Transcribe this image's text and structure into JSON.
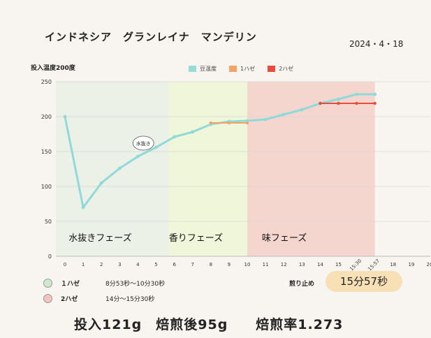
{
  "header": {
    "title": "インドネシア　グランレイナ　マンデリン",
    "date": "2024・4・18"
  },
  "colors": {
    "bean_temp": "#98dcd8",
    "bean_temp_line": "#8fdad8",
    "first_crack": "#f1a466",
    "second_crack": "#e74c3c",
    "phase_drying": "#ecf1e8",
    "phase_aroma": "#f0f6d9",
    "phase_flavor": "#f5d6cf",
    "first_crack_dot": "#cdeacc",
    "second_crack_dot": "#f2c3bf",
    "finish_pill": "#f8e0b6"
  },
  "chart_data": {
    "type": "line",
    "ylabel": "投入温度200度",
    "ylim": [
      0,
      250
    ],
    "yticks": [
      "0",
      "50",
      "100",
      "150",
      "200",
      "250"
    ],
    "xlim": [
      0,
      20
    ],
    "xticks": [
      {
        "x": 0,
        "label": "0"
      },
      {
        "x": 1,
        "label": "1"
      },
      {
        "x": 2,
        "label": "2"
      },
      {
        "x": 3,
        "label": "3"
      },
      {
        "x": 4,
        "label": "4"
      },
      {
        "x": 5,
        "label": "5"
      },
      {
        "x": 6,
        "label": "6"
      },
      {
        "x": 7,
        "label": "7"
      },
      {
        "x": 8,
        "label": "8"
      },
      {
        "x": 9,
        "label": "9"
      },
      {
        "x": 10,
        "label": "10"
      },
      {
        "x": 11,
        "label": "11"
      },
      {
        "x": 12,
        "label": "12"
      },
      {
        "x": 13,
        "label": "13"
      },
      {
        "x": 14,
        "label": "14"
      },
      {
        "x": 15,
        "label": "15"
      },
      {
        "x": 16,
        "label": "15:30"
      },
      {
        "x": 17,
        "label": "15:57"
      },
      {
        "x": 18,
        "label": "18"
      },
      {
        "x": 19,
        "label": "19"
      },
      {
        "x": 20,
        "label": "20"
      }
    ],
    "grid": true,
    "legend_position": "top",
    "series": [
      {
        "name": "豆温度",
        "color_key": "bean_temp_line",
        "swatch_key": "bean_temp",
        "x": [
          0,
          1,
          2,
          3,
          4,
          5,
          6,
          7,
          8,
          9,
          10,
          11,
          12,
          13,
          14,
          15,
          16,
          17
        ],
        "values": [
          200,
          70,
          105,
          126,
          143,
          156,
          171,
          178,
          189,
          193,
          194,
          196,
          203,
          210,
          219,
          225,
          232,
          232
        ]
      },
      {
        "name": "1ハゼ",
        "color_key": "first_crack",
        "swatch_key": "first_crack",
        "x": [
          8,
          9,
          10
        ],
        "values": [
          191,
          191,
          191
        ]
      },
      {
        "name": "2ハゼ",
        "color_key": "second_crack",
        "swatch_key": "second_crack",
        "x": [
          14,
          15,
          16,
          17
        ],
        "values": [
          219,
          219,
          219,
          219
        ]
      }
    ],
    "phases": [
      {
        "label": "水抜きフェーズ",
        "from": 0,
        "to": 5.7,
        "color_key": "phase_drying"
      },
      {
        "label": "香りフェーズ",
        "from": 5.7,
        "to": 10,
        "color_key": "phase_aroma"
      },
      {
        "label": "味フェーズ",
        "from": 10,
        "to": 17,
        "color_key": "phase_flavor"
      }
    ],
    "annotations": [
      {
        "text": "水抜き",
        "x": 4.3,
        "y": 162
      }
    ]
  },
  "notes": {
    "first_crack": {
      "label": "１ハゼ",
      "range": "8分53秒〜10分30秒"
    },
    "second_crack": {
      "label": "2ハゼ",
      "range": "14分〜15分30秒"
    }
  },
  "finish": {
    "label": "煎り止め",
    "time": "15分57秒"
  },
  "summary": "投入121g　焙煎後95g　　焙煎率1.273"
}
